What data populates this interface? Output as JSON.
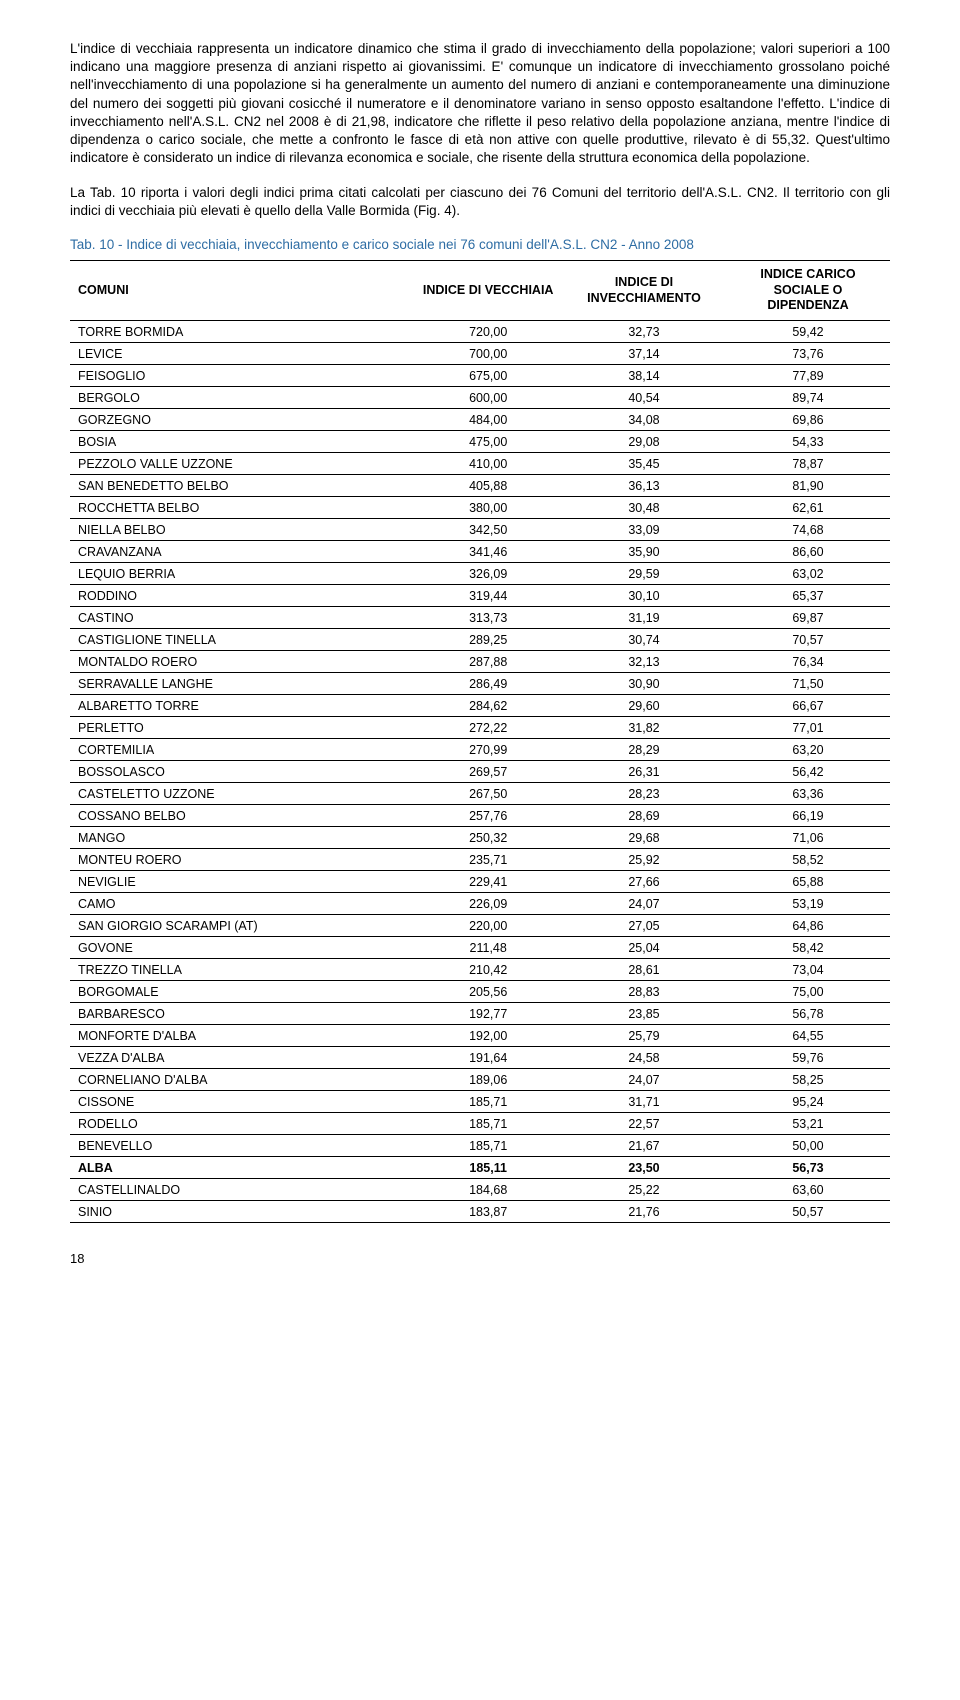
{
  "paragraphs": [
    "L'indice di vecchiaia rappresenta un indicatore dinamico che stima il grado di invecchiamento della popolazione; valori superiori a 100 indicano una maggiore presenza di anziani rispetto ai giovanissimi. E' comunque un indicatore di invecchiamento grossolano poiché nell'invecchiamento di una popolazione si ha generalmente un aumento del numero di anziani e contemporaneamente una diminuzione del numero dei soggetti più giovani cosicché il numeratore e il denominatore variano in senso opposto esaltandone l'effetto. L'indice di invecchiamento nell'A.S.L. CN2 nel 2008 è di 21,98, indicatore che riflette il peso relativo della popolazione anziana, mentre l'indice di dipendenza o carico sociale, che mette a confronto le fasce di età non attive con quelle produttive, rilevato è di 55,32. Quest'ultimo indicatore è considerato un indice di rilevanza economica e sociale, che risente della struttura economica della popolazione.",
    "La Tab. 10 riporta i valori degli indici prima citati calcolati per ciascuno dei 76 Comuni del territorio dell'A.S.L. CN2. Il territorio con gli indici di vecchiaia più elevati è quello della Valle Bormida (Fig. 4)."
  ],
  "caption": "Tab. 10 - Indice di vecchiaia, invecchiamento e carico sociale nei 76 comuni dell'A.S.L. CN2 - Anno 2008",
  "caption_color": "#2e6da4",
  "headers": [
    "COMUNI",
    "INDICE DI VECCHIAIA",
    "INDICE DI INVECCHIAMENTO",
    "INDICE CARICO SOCIALE O DIPENDENZA"
  ],
  "rows": [
    {
      "name": "TORRE BORMIDA",
      "v1": "720,00",
      "v2": "32,73",
      "v3": "59,42"
    },
    {
      "name": "LEVICE",
      "v1": "700,00",
      "v2": "37,14",
      "v3": "73,76"
    },
    {
      "name": "FEISOGLIO",
      "v1": "675,00",
      "v2": "38,14",
      "v3": "77,89"
    },
    {
      "name": "BERGOLO",
      "v1": "600,00",
      "v2": "40,54",
      "v3": "89,74"
    },
    {
      "name": "GORZEGNO",
      "v1": "484,00",
      "v2": "34,08",
      "v3": "69,86"
    },
    {
      "name": "BOSIA",
      "v1": "475,00",
      "v2": "29,08",
      "v3": "54,33"
    },
    {
      "name": "PEZZOLO VALLE UZZONE",
      "v1": "410,00",
      "v2": "35,45",
      "v3": "78,87"
    },
    {
      "name": "SAN BENEDETTO BELBO",
      "v1": "405,88",
      "v2": "36,13",
      "v3": "81,90"
    },
    {
      "name": "ROCCHETTA BELBO",
      "v1": "380,00",
      "v2": "30,48",
      "v3": "62,61"
    },
    {
      "name": "NIELLA BELBO",
      "v1": "342,50",
      "v2": "33,09",
      "v3": "74,68"
    },
    {
      "name": "CRAVANZANA",
      "v1": "341,46",
      "v2": "35,90",
      "v3": "86,60"
    },
    {
      "name": "LEQUIO BERRIA",
      "v1": "326,09",
      "v2": "29,59",
      "v3": "63,02"
    },
    {
      "name": "RODDINO",
      "v1": "319,44",
      "v2": "30,10",
      "v3": "65,37"
    },
    {
      "name": "CASTINO",
      "v1": "313,73",
      "v2": "31,19",
      "v3": "69,87"
    },
    {
      "name": "CASTIGLIONE TINELLA",
      "v1": "289,25",
      "v2": "30,74",
      "v3": "70,57"
    },
    {
      "name": "MONTALDO ROERO",
      "v1": "287,88",
      "v2": "32,13",
      "v3": "76,34"
    },
    {
      "name": "SERRAVALLE LANGHE",
      "v1": "286,49",
      "v2": "30,90",
      "v3": "71,50"
    },
    {
      "name": "ALBARETTO TORRE",
      "v1": "284,62",
      "v2": "29,60",
      "v3": "66,67"
    },
    {
      "name": "PERLETTO",
      "v1": "272,22",
      "v2": "31,82",
      "v3": "77,01"
    },
    {
      "name": "CORTEMILIA",
      "v1": "270,99",
      "v2": "28,29",
      "v3": "63,20"
    },
    {
      "name": "BOSSOLASCO",
      "v1": "269,57",
      "v2": "26,31",
      "v3": "56,42"
    },
    {
      "name": "CASTELETTO UZZONE",
      "v1": "267,50",
      "v2": "28,23",
      "v3": "63,36"
    },
    {
      "name": "COSSANO BELBO",
      "v1": "257,76",
      "v2": "28,69",
      "v3": "66,19"
    },
    {
      "name": "MANGO",
      "v1": "250,32",
      "v2": "29,68",
      "v3": "71,06"
    },
    {
      "name": "MONTEU ROERO",
      "v1": "235,71",
      "v2": "25,92",
      "v3": "58,52"
    },
    {
      "name": "NEVIGLIE",
      "v1": "229,41",
      "v2": "27,66",
      "v3": "65,88"
    },
    {
      "name": "CAMO",
      "v1": "226,09",
      "v2": "24,07",
      "v3": "53,19"
    },
    {
      "name": "SAN GIORGIO SCARAMPI (AT)",
      "v1": "220,00",
      "v2": "27,05",
      "v3": "64,86"
    },
    {
      "name": "GOVONE",
      "v1": "211,48",
      "v2": "25,04",
      "v3": "58,42"
    },
    {
      "name": "TREZZO TINELLA",
      "v1": "210,42",
      "v2": "28,61",
      "v3": "73,04"
    },
    {
      "name": "BORGOMALE",
      "v1": "205,56",
      "v2": "28,83",
      "v3": "75,00"
    },
    {
      "name": "BARBARESCO",
      "v1": "192,77",
      "v2": "23,85",
      "v3": "56,78"
    },
    {
      "name": "MONFORTE D'ALBA",
      "v1": "192,00",
      "v2": "25,79",
      "v3": "64,55"
    },
    {
      "name": "VEZZA D'ALBA",
      "v1": "191,64",
      "v2": "24,58",
      "v3": "59,76"
    },
    {
      "name": "CORNELIANO D'ALBA",
      "v1": "189,06",
      "v2": "24,07",
      "v3": "58,25"
    },
    {
      "name": "CISSONE",
      "v1": "185,71",
      "v2": "31,71",
      "v3": "95,24"
    },
    {
      "name": "RODELLO",
      "v1": "185,71",
      "v2": "22,57",
      "v3": "53,21"
    },
    {
      "name": "BENEVELLO",
      "v1": "185,71",
      "v2": "21,67",
      "v3": "50,00"
    },
    {
      "name": "ALBA",
      "v1": "185,11",
      "v2": "23,50",
      "v3": "56,73",
      "bold": true
    },
    {
      "name": "CASTELLINALDO",
      "v1": "184,68",
      "v2": "25,22",
      "v3": "63,60"
    },
    {
      "name": "SINIO",
      "v1": "183,87",
      "v2": "21,76",
      "v3": "50,57"
    }
  ],
  "page_number": "18",
  "col_widths": [
    "42%",
    "18%",
    "20%",
    "20%"
  ]
}
